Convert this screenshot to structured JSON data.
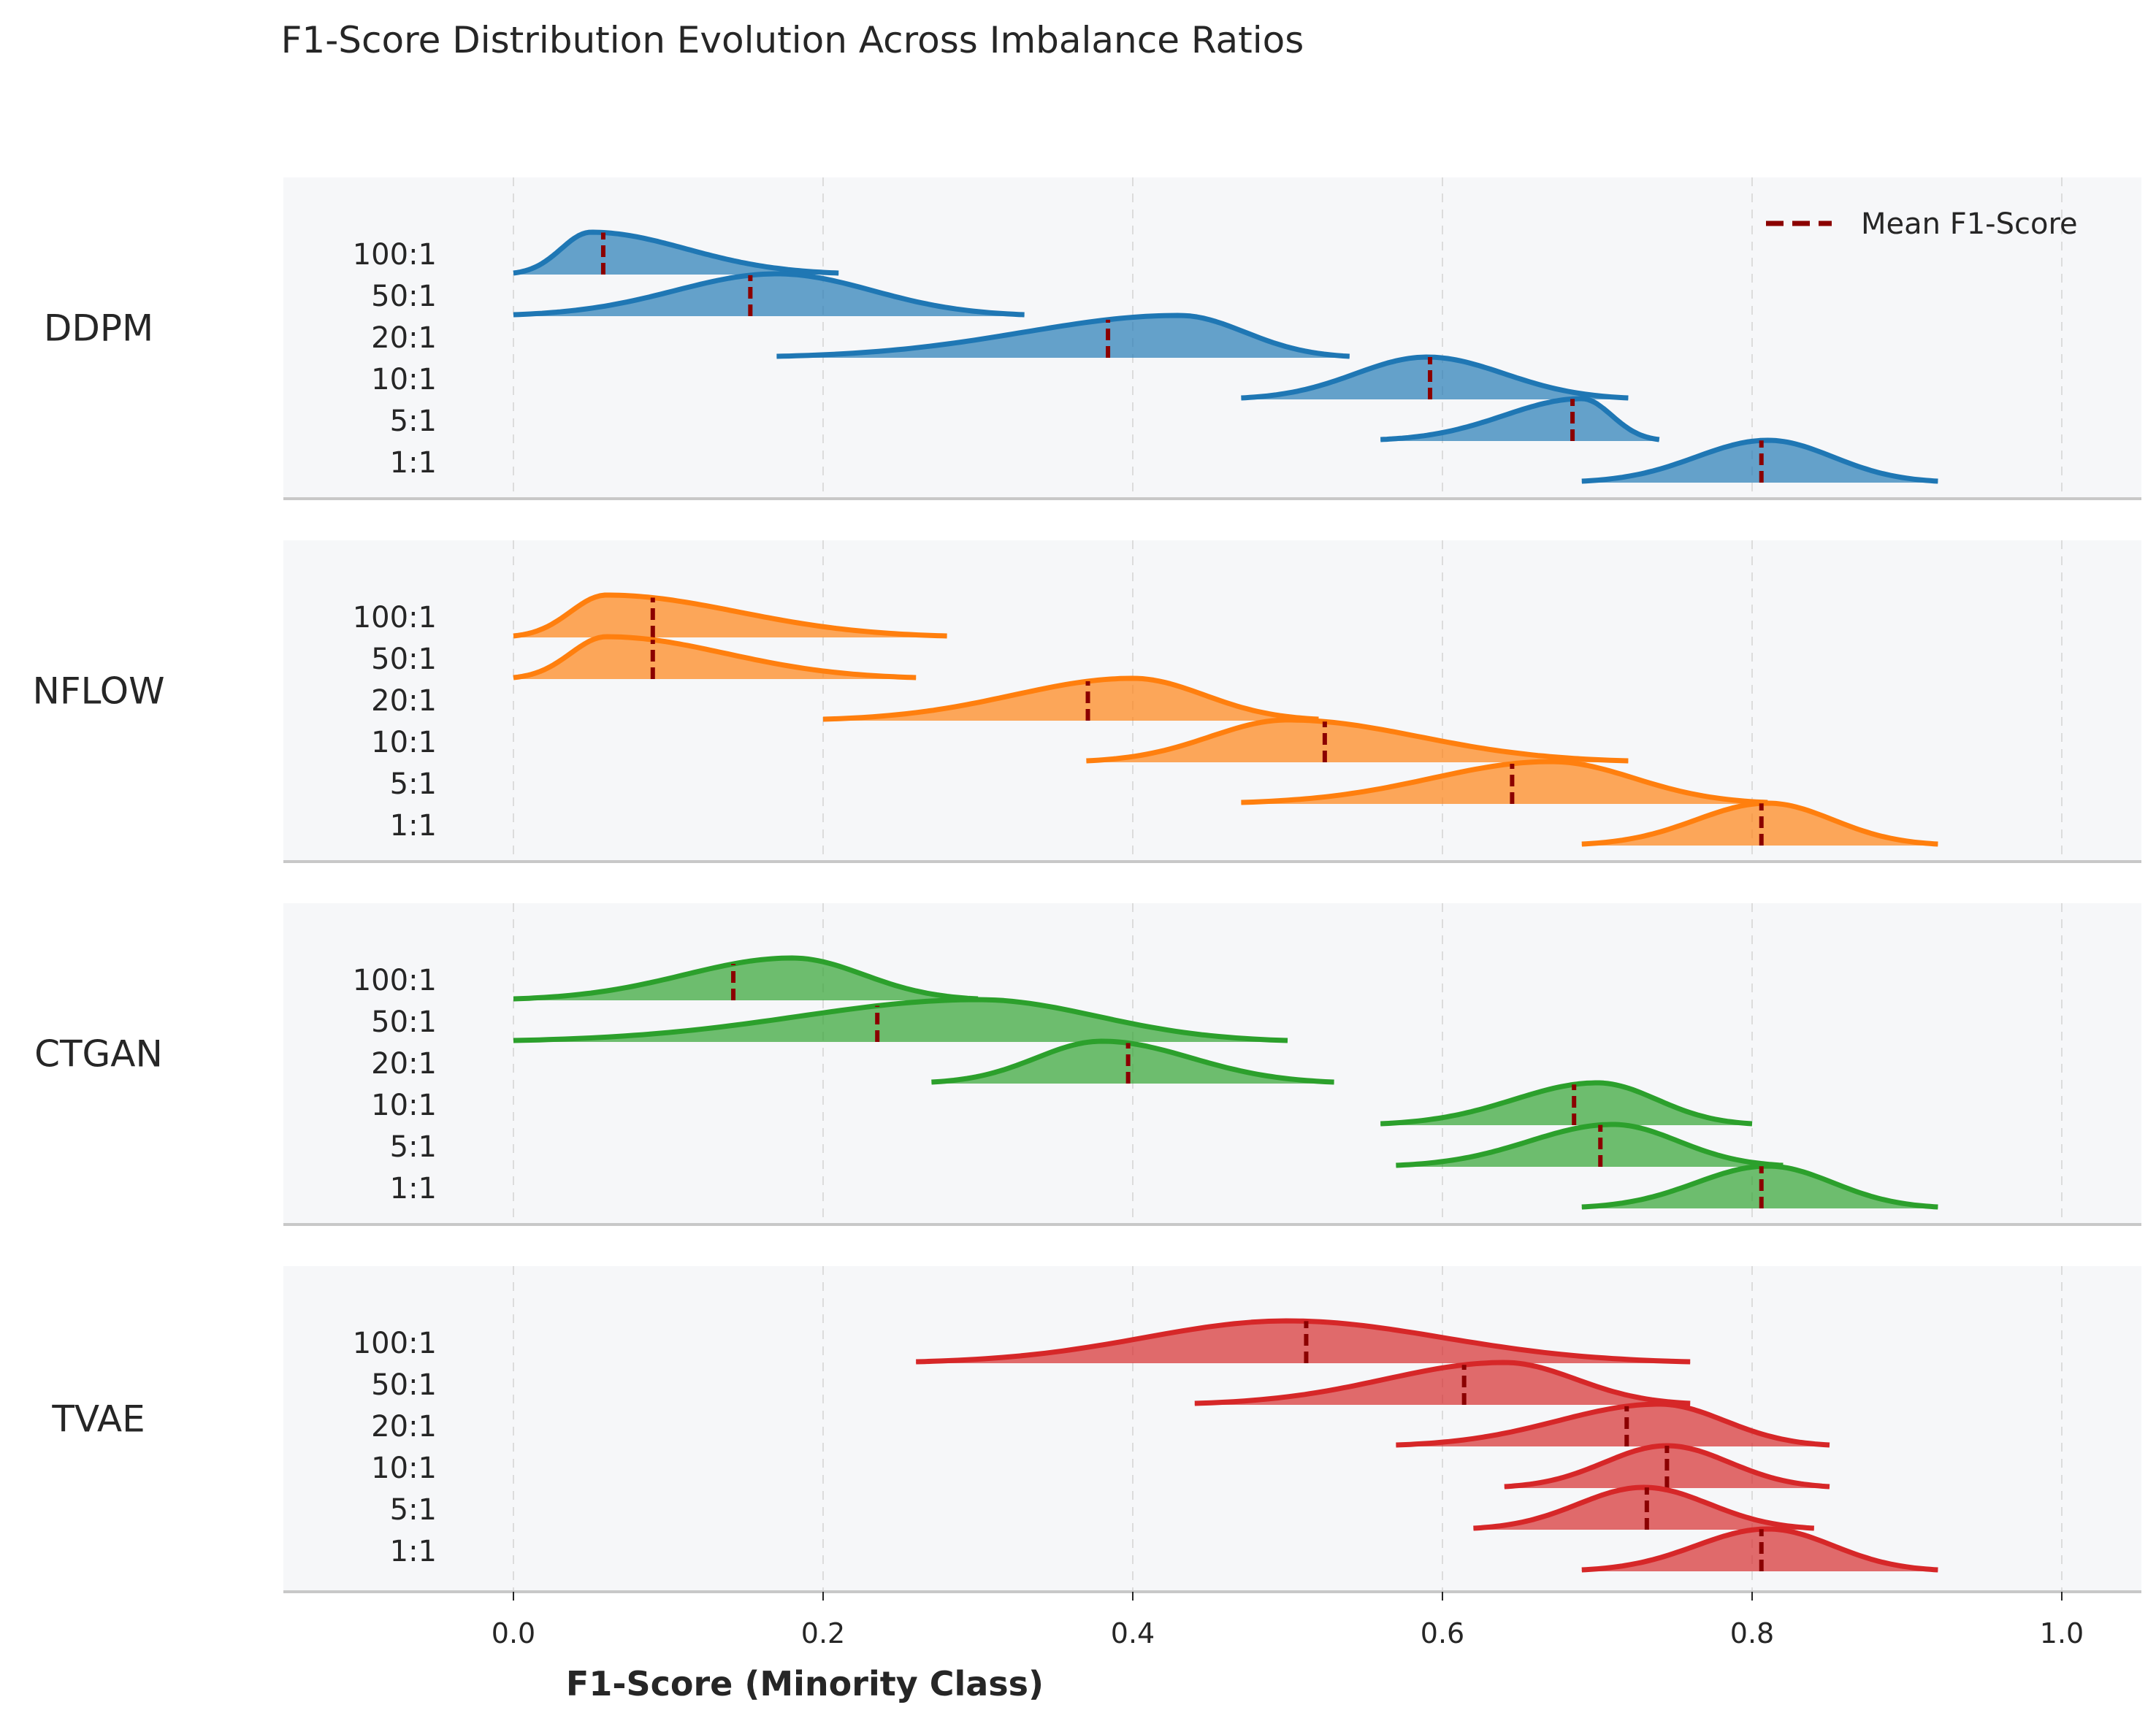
{
  "chart_data": {
    "type": "ridgeline",
    "title": "F1-Score Distribution Evolution Across Imbalance Ratios",
    "xlabel": "F1-Score (Minority Class)",
    "xlim": [
      -0.15,
      1.05
    ],
    "xticks": [
      "0.0",
      "0.2",
      "0.4",
      "0.6",
      "0.8",
      "1.0"
    ],
    "xtick_values": [
      0.0,
      0.2,
      0.4,
      0.6,
      0.8,
      1.0
    ],
    "grid": "vertical dashed",
    "legend": {
      "label": "Mean F1-Score",
      "placement": "top-right",
      "color": "#8b0000",
      "style": "dashed"
    },
    "ratios": [
      "100:1",
      "50:1",
      "20:1",
      "10:1",
      "5:1",
      "1:1"
    ],
    "panels": [
      {
        "method": "DDPM",
        "color": "#1f77b4",
        "series": [
          {
            "ratio": "100:1",
            "range": [
              0.0,
              0.21
            ],
            "peak": 0.05,
            "mean": 0.058
          },
          {
            "ratio": "50:1",
            "range": [
              0.0,
              0.33
            ],
            "peak": 0.17,
            "mean": 0.153
          },
          {
            "ratio": "20:1",
            "range": [
              0.17,
              0.54
            ],
            "peak": 0.43,
            "mean": 0.384
          },
          {
            "ratio": "10:1",
            "range": [
              0.47,
              0.72
            ],
            "peak": 0.59,
            "mean": 0.592
          },
          {
            "ratio": "5:1",
            "range": [
              0.56,
              0.74
            ],
            "peak": 0.69,
            "mean": 0.684
          },
          {
            "ratio": "1:1",
            "range": [
              0.69,
              0.92
            ],
            "peak": 0.81,
            "mean": 0.806
          }
        ]
      },
      {
        "method": "NFLOW",
        "color": "#ff7f0e",
        "series": [
          {
            "ratio": "100:1",
            "range": [
              0.0,
              0.28
            ],
            "peak": 0.06,
            "mean": 0.09
          },
          {
            "ratio": "50:1",
            "range": [
              0.0,
              0.26
            ],
            "peak": 0.06,
            "mean": 0.09
          },
          {
            "ratio": "20:1",
            "range": [
              0.2,
              0.52
            ],
            "peak": 0.4,
            "mean": 0.371
          },
          {
            "ratio": "10:1",
            "range": [
              0.37,
              0.72
            ],
            "peak": 0.5,
            "mean": 0.524
          },
          {
            "ratio": "5:1",
            "range": [
              0.47,
              0.81
            ],
            "peak": 0.67,
            "mean": 0.645
          },
          {
            "ratio": "1:1",
            "range": [
              0.69,
              0.92
            ],
            "peak": 0.81,
            "mean": 0.806
          }
        ]
      },
      {
        "method": "CTGAN",
        "color": "#2ca02c",
        "series": [
          {
            "ratio": "100:1",
            "range": [
              0.0,
              0.3
            ],
            "peak": 0.18,
            "mean": 0.142
          },
          {
            "ratio": "50:1",
            "range": [
              0.0,
              0.5
            ],
            "peak": 0.3,
            "mean": 0.235
          },
          {
            "ratio": "20:1",
            "range": [
              0.27,
              0.53
            ],
            "peak": 0.38,
            "mean": 0.397
          },
          {
            "ratio": "10:1",
            "range": [
              0.56,
              0.8
            ],
            "peak": 0.7,
            "mean": 0.685
          },
          {
            "ratio": "5:1",
            "range": [
              0.57,
              0.82
            ],
            "peak": 0.71,
            "mean": 0.702
          },
          {
            "ratio": "1:1",
            "range": [
              0.69,
              0.92
            ],
            "peak": 0.81,
            "mean": 0.806
          }
        ]
      },
      {
        "method": "TVAE",
        "color": "#d62728",
        "series": [
          {
            "ratio": "100:1",
            "range": [
              0.26,
              0.76
            ],
            "peak": 0.5,
            "mean": 0.512
          },
          {
            "ratio": "50:1",
            "range": [
              0.44,
              0.76
            ],
            "peak": 0.64,
            "mean": 0.614
          },
          {
            "ratio": "20:1",
            "range": [
              0.57,
              0.85
            ],
            "peak": 0.74,
            "mean": 0.719
          },
          {
            "ratio": "10:1",
            "range": [
              0.64,
              0.85
            ],
            "peak": 0.745,
            "mean": 0.745
          },
          {
            "ratio": "5:1",
            "range": [
              0.62,
              0.84
            ],
            "peak": 0.73,
            "mean": 0.732
          },
          {
            "ratio": "1:1",
            "range": [
              0.69,
              0.92
            ],
            "peak": 0.81,
            "mean": 0.806
          }
        ]
      }
    ]
  }
}
